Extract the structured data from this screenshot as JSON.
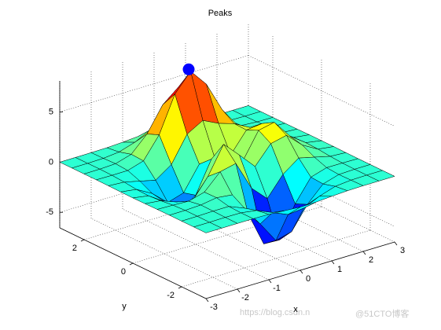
{
  "chart_data": {
    "type": "surface",
    "title": "Peaks",
    "xlabel": "x",
    "ylabel": "y",
    "x": [
      -3,
      -2.5,
      -2,
      -1.5,
      -1,
      -0.5,
      0,
      0.5,
      1,
      1.5,
      2,
      2.5,
      3
    ],
    "y": [
      -3,
      -2.5,
      -2,
      -1.5,
      -1,
      -0.5,
      0,
      0.5,
      1,
      1.5,
      2,
      2.5,
      3
    ],
    "z": [
      [
        0,
        0,
        0,
        0,
        -0.03,
        -0.14,
        -0.24,
        -0.22,
        -0.11,
        -0.03,
        0,
        0,
        0
      ],
      [
        0,
        0,
        0.02,
        0,
        -0.23,
        -0.91,
        -1.57,
        -1.41,
        -0.69,
        -0.18,
        -0.03,
        0,
        0
      ],
      [
        0,
        0.01,
        0.05,
        0.05,
        -0.59,
        -2.63,
        -4.75,
        -4.34,
        -2.1,
        -0.53,
        -0.06,
        0,
        0
      ],
      [
        0,
        0.01,
        0.08,
        0.33,
        0.15,
        -2.19,
        -5.68,
        -5.76,
        -2.63,
        -0.44,
        0.04,
        0.03,
        0
      ],
      [
        -0.01,
        -0.06,
        -0.13,
        0.3,
        1.86,
        2.22,
        -0.72,
        -2.22,
        -0.27,
        0.88,
        0.5,
        0.11,
        0.01
      ],
      [
        -0.03,
        -0.2,
        -0.8,
        -1.21,
        0.8,
        3.55,
        2,
        0.39,
        2.2,
        2.56,
        1.12,
        0.24,
        0.03
      ],
      [
        -0.04,
        -0.3,
        -1.33,
        -2.77,
        -1.65,
        1.48,
        0.98,
        0.37,
        2.94,
        3.27,
        1.41,
        0.3,
        0.03
      ],
      [
        -0.03,
        -0.25,
        -1.12,
        -2.49,
        -2,
        0.39,
        0.46,
        0.38,
        2.38,
        2.56,
        1.09,
        0.23,
        0.03
      ],
      [
        -0.01,
        -0.11,
        -0.48,
        -0.86,
        0.23,
        2.79,
        3.69,
        2.93,
        2.43,
        1.58,
        0.58,
        0.11,
        0.01
      ],
      [
        0,
        -0.02,
        -0.01,
        0.48,
        2.61,
        6.2,
        8,
        6.25,
        3.25,
        1.19,
        0.29,
        0.05,
        0
      ],
      [
        0,
        0.01,
        0.08,
        0.55,
        2.1,
        4.55,
        5.85,
        4.56,
        2.21,
        0.68,
        0.13,
        0.02,
        0
      ],
      [
        0,
        0,
        0.03,
        0.19,
        0.69,
        1.47,
        1.88,
        1.47,
        0.7,
        0.2,
        0.04,
        0,
        0
      ],
      [
        0,
        0,
        0.01,
        0.03,
        0.11,
        0.23,
        0.3,
        0.23,
        0.11,
        0.03,
        0.01,
        0,
        0
      ]
    ],
    "colormap": "jet",
    "edge_color": "#000000",
    "marker": {
      "x": 0,
      "y": 1.58,
      "z": 8.1,
      "color": "#0000ff"
    },
    "xlim": [
      -3,
      3
    ],
    "ylim": [
      -3,
      3
    ],
    "zlim": [
      -6.55,
      8.1
    ],
    "xticks": [
      -3,
      -2,
      -1,
      0,
      1,
      2,
      3
    ],
    "yticks": [
      -2,
      0,
      2
    ],
    "zticks": [
      -5,
      0,
      5
    ],
    "grid": true,
    "watermark": [
      "https://blog.csdn.n",
      "@51CTO博客"
    ]
  }
}
